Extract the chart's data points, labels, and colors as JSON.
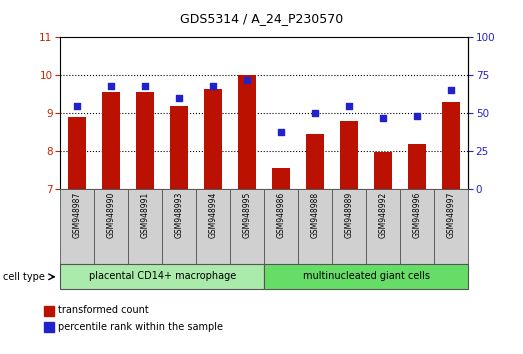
{
  "title": "GDS5314 / A_24_P230570",
  "categories": [
    "GSM948987",
    "GSM948990",
    "GSM948991",
    "GSM948993",
    "GSM948994",
    "GSM948995",
    "GSM948986",
    "GSM948988",
    "GSM948989",
    "GSM948992",
    "GSM948996",
    "GSM948997"
  ],
  "transformed_count": [
    8.9,
    9.55,
    9.55,
    9.2,
    9.65,
    10.0,
    7.55,
    8.45,
    8.8,
    7.97,
    8.2,
    9.3
  ],
  "percentile_rank": [
    55,
    68,
    68,
    60,
    68,
    72,
    38,
    50,
    55,
    47,
    48,
    65
  ],
  "group1_label": "placental CD14+ macrophage",
  "group2_label": "multinucleated giant cells",
  "group1_count": 6,
  "group2_count": 6,
  "ylim_left": [
    7,
    11
  ],
  "ylim_right": [
    0,
    100
  ],
  "yticks_left": [
    7,
    8,
    9,
    10,
    11
  ],
  "yticks_right": [
    0,
    25,
    50,
    75,
    100
  ],
  "bar_color": "#bb1100",
  "dot_color": "#2222cc",
  "bar_width": 0.55,
  "group1_bg": "#aaeaaa",
  "group2_bg": "#66dd66",
  "tick_color_left": "#cc2200",
  "tick_color_right": "#2222cc",
  "legend_bar_label": "transformed count",
  "legend_dot_label": "percentile rank within the sample",
  "cell_type_label": "cell type"
}
